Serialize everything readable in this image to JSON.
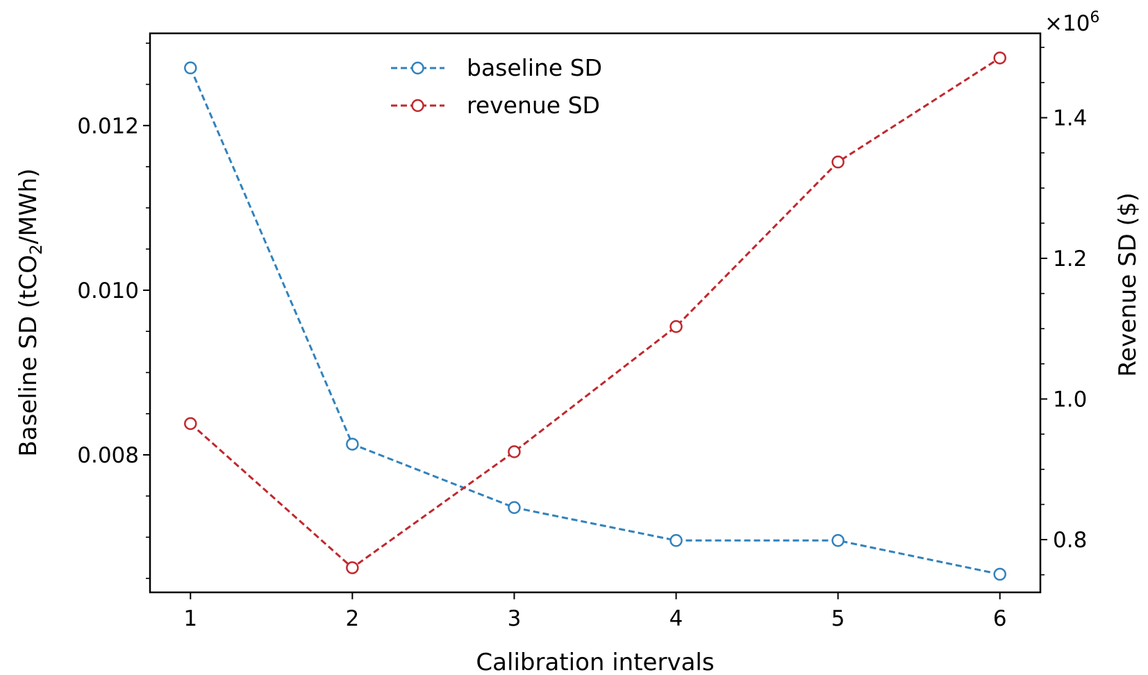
{
  "chart_data": {
    "type": "line",
    "x": [
      1,
      2,
      3,
      4,
      5,
      6
    ],
    "xlabel": "Calibration intervals",
    "xticks": [
      "1",
      "2",
      "3",
      "4",
      "5",
      "6"
    ],
    "xlim": [
      0.75,
      6.25
    ],
    "left_axis": {
      "label_prefix": "Baseline SD (tCO",
      "label_sub": "2",
      "label_suffix": "/MWh)",
      "ylim": [
        0.00633,
        0.01312
      ],
      "ticks": [
        0.008,
        0.01,
        0.012
      ],
      "tick_labels": [
        "0.008",
        "0.010",
        "0.012"
      ],
      "minor_ticks": [
        0.0065,
        0.007,
        0.0075,
        0.0085,
        0.009,
        0.0095,
        0.0105,
        0.011,
        0.0115,
        0.0125,
        0.013
      ]
    },
    "right_axis": {
      "label": "Revenue SD ($)",
      "multiplier": "×10",
      "multiplier_exp": "6",
      "ylim": [
        0.725,
        1.52
      ],
      "ticks": [
        0.8,
        1.0,
        1.2,
        1.4
      ],
      "tick_labels": [
        "0.8",
        "1.0",
        "1.2",
        "1.4"
      ],
      "minor_ticks": [
        0.75,
        0.85,
        0.9,
        0.95,
        1.05,
        1.1,
        1.15,
        1.25,
        1.3,
        1.35,
        1.45,
        1.5
      ]
    },
    "series": [
      {
        "name": "baseline SD",
        "axis": "left",
        "color": "#3182bd",
        "values": [
          0.0127,
          0.00813,
          0.00736,
          0.00696,
          0.00696,
          0.00655
        ]
      },
      {
        "name": "revenue SD",
        "axis": "right",
        "color": "#c0282d",
        "values": [
          0.965,
          0.76,
          0.925,
          1.103,
          1.337,
          1.485
        ]
      }
    ],
    "legend_position": "upper-center",
    "grid": false
  }
}
